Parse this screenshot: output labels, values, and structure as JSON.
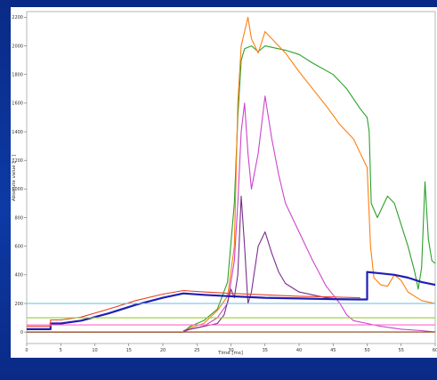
{
  "chart_data": {
    "type": "line",
    "title": "",
    "xlabel": "Time [ms]",
    "ylabel": "Absolute value [ - ]",
    "xlim": [
      0,
      60
    ],
    "ylim": [
      -80,
      2240
    ],
    "x_ticks": [
      "0",
      "5",
      "10",
      "15",
      "20",
      "25",
      "30",
      "35",
      "40",
      "45",
      "50",
      "55",
      "60"
    ],
    "y_ticks": [
      "0",
      "200",
      "400",
      "600",
      "800",
      "1000",
      "1200",
      "1400",
      "1600",
      "1800",
      "2000",
      "2200"
    ],
    "grid": false,
    "legend": "none",
    "series": [
      {
        "color": "#2ca02c",
        "points": [
          [
            0,
            0
          ],
          [
            23,
            0
          ],
          [
            24,
            40
          ],
          [
            26,
            80
          ],
          [
            28,
            160
          ],
          [
            29.5,
            350
          ],
          [
            30.5,
            900
          ],
          [
            31,
            1500
          ],
          [
            31.5,
            1900
          ],
          [
            32,
            1980
          ],
          [
            33,
            2000
          ],
          [
            34,
            1960
          ],
          [
            35,
            2000
          ],
          [
            36,
            1990
          ],
          [
            38,
            1970
          ],
          [
            40,
            1940
          ],
          [
            42,
            1880
          ],
          [
            45,
            1800
          ],
          [
            47,
            1700
          ],
          [
            49,
            1560
          ],
          [
            50,
            1500
          ],
          [
            50.3,
            1400
          ],
          [
            50.6,
            900
          ],
          [
            51.5,
            800
          ],
          [
            53,
            950
          ],
          [
            54,
            900
          ],
          [
            56,
            600
          ],
          [
            57,
            420
          ],
          [
            57.5,
            300
          ],
          [
            58,
            450
          ],
          [
            58.5,
            1050
          ],
          [
            59,
            650
          ],
          [
            59.5,
            500
          ],
          [
            60,
            480
          ]
        ]
      },
      {
        "color": "#ff7f0e",
        "points": [
          [
            0,
            0
          ],
          [
            23,
            0
          ],
          [
            24,
            30
          ],
          [
            26,
            60
          ],
          [
            28,
            150
          ],
          [
            29.5,
            250
          ],
          [
            30.5,
            600
          ],
          [
            31,
            1600
          ],
          [
            31.5,
            2000
          ],
          [
            32,
            2100
          ],
          [
            32.5,
            2200
          ],
          [
            33,
            2050
          ],
          [
            34,
            1950
          ],
          [
            35,
            2100
          ],
          [
            36,
            2050
          ],
          [
            38,
            1950
          ],
          [
            40,
            1820
          ],
          [
            42,
            1700
          ],
          [
            44,
            1580
          ],
          [
            46,
            1450
          ],
          [
            48,
            1350
          ],
          [
            49,
            1250
          ],
          [
            50,
            1150
          ],
          [
            50.5,
            600
          ],
          [
            51,
            380
          ],
          [
            52,
            330
          ],
          [
            53,
            320
          ],
          [
            54,
            400
          ],
          [
            55,
            360
          ],
          [
            56,
            280
          ],
          [
            58,
            220
          ],
          [
            60,
            200
          ]
        ]
      },
      {
        "color": "#cc44cc",
        "points": [
          [
            0,
            0
          ],
          [
            23,
            0
          ],
          [
            24,
            20
          ],
          [
            26,
            40
          ],
          [
            28,
            100
          ],
          [
            29.5,
            200
          ],
          [
            30.5,
            500
          ],
          [
            31,
            900
          ],
          [
            31.5,
            1400
          ],
          [
            32,
            1600
          ],
          [
            32.5,
            1250
          ],
          [
            33,
            1000
          ],
          [
            34,
            1250
          ],
          [
            35,
            1650
          ],
          [
            36,
            1350
          ],
          [
            37,
            1100
          ],
          [
            38,
            900
          ],
          [
            40,
            700
          ],
          [
            42,
            500
          ],
          [
            44,
            320
          ],
          [
            45,
            260
          ],
          [
            46,
            200
          ],
          [
            47,
            120
          ],
          [
            48,
            80
          ],
          [
            50,
            60
          ],
          [
            52,
            40
          ],
          [
            55,
            20
          ],
          [
            58,
            10
          ],
          [
            60,
            0
          ]
        ]
      },
      {
        "color": "#7b2d8b",
        "points": [
          [
            23,
            10
          ],
          [
            24,
            20
          ],
          [
            26,
            40
          ],
          [
            28,
            60
          ],
          [
            29,
            120
          ],
          [
            30,
            300
          ],
          [
            30.5,
            240
          ],
          [
            31,
            400
          ],
          [
            31.5,
            950
          ],
          [
            32,
            600
          ],
          [
            32.5,
            200
          ],
          [
            33,
            280
          ],
          [
            34,
            600
          ],
          [
            35,
            700
          ],
          [
            36,
            550
          ],
          [
            37,
            420
          ],
          [
            38,
            340
          ],
          [
            40,
            280
          ],
          [
            42,
            260
          ],
          [
            44,
            240
          ],
          [
            46,
            230
          ]
        ]
      },
      {
        "color": "#1f1fb4",
        "points": [
          [
            0,
            20
          ],
          [
            3.5,
            20
          ],
          [
            3.5,
            60
          ],
          [
            5,
            60
          ],
          [
            8,
            80
          ],
          [
            12,
            130
          ],
          [
            16,
            190
          ],
          [
            20,
            240
          ],
          [
            23,
            270
          ],
          [
            26,
            260
          ],
          [
            30,
            250
          ],
          [
            35,
            240
          ],
          [
            40,
            235
          ],
          [
            45,
            230
          ],
          [
            49,
            228
          ],
          [
            50,
            228
          ],
          [
            50,
            420
          ],
          [
            52,
            410
          ],
          [
            54,
            400
          ],
          [
            56,
            380
          ],
          [
            58,
            350
          ],
          [
            60,
            330
          ]
        ]
      },
      {
        "color": "#e8402a",
        "points": [
          [
            0,
            40
          ],
          [
            3.5,
            40
          ],
          [
            3.5,
            85
          ],
          [
            5,
            85
          ],
          [
            8,
            105
          ],
          [
            12,
            160
          ],
          [
            16,
            220
          ],
          [
            20,
            265
          ],
          [
            23,
            290
          ],
          [
            26,
            280
          ],
          [
            30,
            270
          ],
          [
            35,
            260
          ],
          [
            40,
            250
          ],
          [
            45,
            245
          ],
          [
            49,
            240
          ]
        ]
      },
      {
        "color": "#5fbfe0",
        "points": [
          [
            0,
            200
          ],
          [
            60,
            200
          ]
        ]
      },
      {
        "color": "#9acd32",
        "points": [
          [
            0,
            100
          ],
          [
            60,
            100
          ]
        ]
      },
      {
        "color": "#ff66cc",
        "points": [
          [
            0,
            50
          ],
          [
            60,
            50
          ]
        ]
      },
      {
        "color": "#8b4513",
        "points": [
          [
            0,
            0
          ],
          [
            60,
            0
          ]
        ]
      }
    ]
  }
}
